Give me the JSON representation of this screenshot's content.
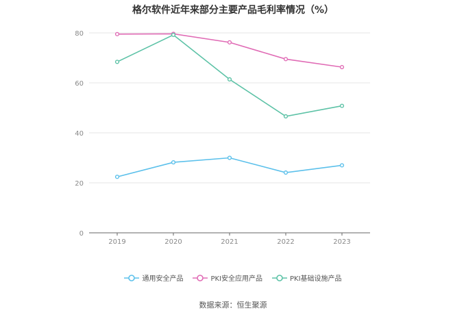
{
  "chart_data": {
    "type": "line",
    "title": "格尔软件近年来部分主要产品毛利率情况（%）",
    "xlabel": "",
    "ylabel": "",
    "categories": [
      "2019",
      "2020",
      "2021",
      "2022",
      "2023"
    ],
    "ylim": [
      0,
      80
    ],
    "yticks": [
      0,
      20,
      40,
      60,
      80
    ],
    "grid": true,
    "legend_position": "bottom",
    "series": [
      {
        "name": "通用安全产品",
        "color": "#5bc0eb",
        "values": [
          22.4,
          28.2,
          30.0,
          24.1,
          27.0
        ]
      },
      {
        "name": "PKI安全应用产品",
        "color": "#e06bb5",
        "values": [
          79.5,
          79.6,
          76.2,
          69.5,
          66.3
        ]
      },
      {
        "name": "PKI基础设施产品",
        "color": "#5cc2a6",
        "values": [
          68.4,
          79.2,
          61.4,
          46.6,
          50.8
        ]
      }
    ]
  },
  "source_note": "数据来源：恒生聚源"
}
